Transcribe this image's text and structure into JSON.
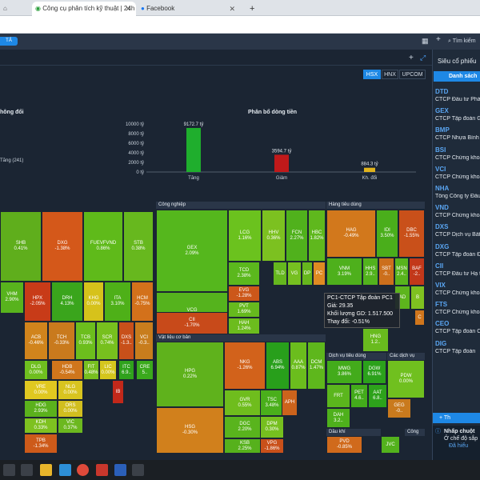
{
  "browser": {
    "tabs": [
      {
        "title": "Công cụ phân tích kỹ thuật | 24h"
      },
      {
        "title": "Facebook"
      }
    ]
  },
  "app": {
    "small_button": "TẢ",
    "search_placeholder": "Tìm kiếm"
  },
  "exchanges": [
    "HSX",
    "HNX",
    "UPCOM"
  ],
  "selected_exchange": "HSX",
  "chart_titles": {
    "left": "hông đổi",
    "right": "Phân bổ dòng tiền"
  },
  "left_legend": "Tăng (241)",
  "chart_data": {
    "type": "bar",
    "title": "Phân bổ dòng tiền",
    "categories": [
      "Tăng",
      "Giảm",
      "Kh. đổi"
    ],
    "values": [
      9172.7,
      3594.7,
      884.3
    ],
    "data_labels": [
      "9172.7 tỷ",
      "3594.7 tỷ",
      "884.3 tỷ"
    ],
    "y_ticks": [
      "10000 tỷ",
      "8000 tỷ",
      "6000 tỷ",
      "4000 tỷ",
      "2000 tỷ",
      "0 tỷ"
    ],
    "ylim": [
      0,
      10000
    ],
    "colors": [
      "#1fae2d",
      "#c0191a",
      "#e0b31c"
    ],
    "grid": false
  },
  "sectors": {
    "cong_nghiep": "Công nghiệp",
    "hang_tieu_dung": "Hàng tiêu dùng",
    "vat_lieu": "Vật liệu cơ bản",
    "dv_tieu_dung": "Dịch vụ tiêu dùng",
    "cac_dich_vu": "Các dịch vụ",
    "dau_khi": "Dầu khí",
    "cong": "Công"
  },
  "tiles": [
    {
      "sym": "SHB",
      "pct": "0.41%",
      "c": "#5fae1c"
    },
    {
      "sym": "DXG",
      "pct": "-1.38%",
      "c": "#d4581a"
    },
    {
      "sym": "FUEVFVND",
      "pct": "0.86%",
      "c": "#5fba1a"
    },
    {
      "sym": "STB",
      "pct": "0.38%",
      "c": "#67b81e"
    },
    {
      "sym": "HPX",
      "pct": "-2.05%",
      "c": "#c83b18"
    },
    {
      "sym": "DRH",
      "pct": "4.13%",
      "c": "#3aa51c"
    },
    {
      "sym": "KHG",
      "pct": "0.00%",
      "c": "#d6c21b"
    },
    {
      "sym": "ITA",
      "pct": "3.10%",
      "c": "#4eb018"
    },
    {
      "sym": "HCM",
      "pct": "-0.75%",
      "c": "#d3711b"
    },
    {
      "sym": "ACB",
      "pct": "-0.46%",
      "c": "#d1841c"
    },
    {
      "sym": "TCH",
      "pct": "-0.33%",
      "c": "#c97a1d"
    },
    {
      "sym": "TCB",
      "pct": "0.93%",
      "c": "#6cbe1d"
    },
    {
      "sym": "SCR",
      "pct": "0.74%",
      "c": "#77c01e"
    },
    {
      "sym": "DXS",
      "pct": "-1.3..",
      "c": "#c8501a"
    },
    {
      "sym": "VCI",
      "pct": "-0.3..",
      "c": "#c87d1d"
    },
    {
      "sym": "DLG",
      "pct": "0.00%",
      "c": "#6fbf1f"
    },
    {
      "sym": "HDB",
      "pct": "-0.54%",
      "c": "#d0761c"
    },
    {
      "sym": "FIT",
      "pct": "0.48%",
      "c": "#78bf20"
    },
    {
      "sym": "LIC",
      "pct": "0.00%",
      "c": "#d4c61d"
    },
    {
      "sym": "ITC",
      "pct": "6.9..",
      "c": "#2fa21c"
    },
    {
      "sym": "CRE",
      "pct": "5..",
      "c": "#3aaa1c"
    },
    {
      "sym": "VRE",
      "pct": "0.00%",
      "c": "#e0c820"
    },
    {
      "sym": "NLG",
      "pct": "0.00%",
      "c": "#d8c41f"
    },
    {
      "sym": "HDG",
      "pct": "2.93%",
      "c": "#5bb11c"
    },
    {
      "sym": "ORS",
      "pct": "0.00%",
      "c": "#d1be1f"
    },
    {
      "sym": "KDH",
      "pct": "0.33%",
      "c": "#7ec120"
    },
    {
      "sym": "VIC",
      "pct": "0.37%",
      "c": "#6cb81f"
    },
    {
      "sym": "TPB",
      "pct": "-1.34%",
      "c": "#cd5a1a"
    },
    {
      "sym": "VHM",
      "pct": "2.90%",
      "c": "#58b31d"
    },
    {
      "sym": "GEX",
      "pct": "2.09%",
      "c": "#55b71d"
    },
    {
      "sym": "LCG",
      "pct": "1.16%",
      "c": "#6bc21e"
    },
    {
      "sym": "HHV",
      "pct": "0.36%",
      "c": "#7cc120"
    },
    {
      "sym": "FCN",
      "pct": "2.27%",
      "c": "#50b11c"
    },
    {
      "sym": "HBC",
      "pct": "1.82%",
      "c": "#5fb81d"
    },
    {
      "sym": "VCG",
      "pct": "2.56%",
      "c": "#55b31d"
    },
    {
      "sym": "TCD",
      "pct": "2.38%",
      "c": "#5bb81d"
    },
    {
      "sym": "TLD",
      "pct": "",
      "c": "#65b71e"
    },
    {
      "sym": "VG",
      "pct": "",
      "c": "#76c020"
    },
    {
      "sym": "DP",
      "pct": "",
      "c": "#66b61d"
    },
    {
      "sym": "PC",
      "pct": "",
      "c": "#e08a22"
    },
    {
      "sym": "EVG",
      "pct": "-1.28%",
      "c": "#cc571a"
    },
    {
      "sym": "PVT",
      "pct": "1.69%",
      "c": "#66b91e"
    },
    {
      "sym": "CII",
      "pct": "-1.70%",
      "c": "#c84a1a"
    },
    {
      "sym": "HAH",
      "pct": "1.24%",
      "c": "#6cbc1e"
    },
    {
      "sym": "HAG",
      "pct": "-0.49%",
      "c": "#d2781c"
    },
    {
      "sym": "IDI",
      "pct": "3.50%",
      "c": "#4aae1b"
    },
    {
      "sym": "DBC",
      "pct": "-1.55%",
      "c": "#c9501a"
    },
    {
      "sym": "VNM",
      "pct": "3.19%",
      "c": "#4eb01c"
    },
    {
      "sym": "HHS",
      "pct": "2.9..",
      "c": "#52b21d"
    },
    {
      "sym": "SBT",
      "pct": "-0..",
      "c": "#cc6f1c"
    },
    {
      "sym": "MSN",
      "pct": "2.4..",
      "c": "#58b41d"
    },
    {
      "sym": "BAF",
      "pct": "-2..",
      "c": "#c2381a"
    },
    {
      "sym": "AD",
      "pct": "",
      "c": "#5db51d"
    },
    {
      "sym": "B",
      "pct": "",
      "c": "#7fc120"
    },
    {
      "sym": "HNG",
      "pct": "1.2..",
      "c": "#69bb1e"
    },
    {
      "sym": "C",
      "pct": "",
      "c": "#d0761c"
    },
    {
      "sym": "HPG",
      "pct": "0.22%",
      "c": "#5fb21c"
    },
    {
      "sym": "NKG",
      "pct": "-1.26%",
      "c": "#d2621b"
    },
    {
      "sym": "ABS",
      "pct": "6.94%",
      "c": "#289f1b"
    },
    {
      "sym": "AAA",
      "pct": "0.87%",
      "c": "#6bbd1d"
    },
    {
      "sym": "DCM",
      "pct": "1.47%",
      "c": "#5eb71c"
    },
    {
      "sym": "GVR",
      "pct": "0.55%",
      "c": "#6fbd1d"
    },
    {
      "sym": "TSC",
      "pct": "3.48%",
      "c": "#4aaf1b"
    },
    {
      "sym": "APH",
      "pct": "",
      "c": "#cc631c"
    },
    {
      "sym": "HSG",
      "pct": "-0.30%",
      "c": "#d1801c"
    },
    {
      "sym": "DGC",
      "pct": "2.20%",
      "c": "#59b41d"
    },
    {
      "sym": "DPM",
      "pct": "0.30%",
      "c": "#76bf1f"
    },
    {
      "sym": "KSB",
      "pct": "2.25%",
      "c": "#56b11c"
    },
    {
      "sym": "VPG",
      "pct": "-1.86%",
      "c": "#c9501a"
    },
    {
      "sym": "MWG",
      "pct": "3.86%",
      "c": "#43ab1b"
    },
    {
      "sym": "DGW",
      "pct": "6.91%",
      "c": "#2ba11b"
    },
    {
      "sym": "PDW",
      "pct": "0.00%",
      "c": "#70c01f"
    },
    {
      "sym": "FRT",
      "pct": "",
      "c": "#5bb61d"
    },
    {
      "sym": "PET",
      "pct": "4.6..",
      "c": "#43ab1b"
    },
    {
      "sym": "AAT",
      "pct": "6.8..",
      "c": "#2da21b"
    },
    {
      "sym": "DAH",
      "pct": "3.2..",
      "c": "#4eb01c"
    },
    {
      "sym": "GEG",
      "pct": "-0..",
      "c": "#c97a1d"
    },
    {
      "sym": "PVD",
      "pct": "-0.85%",
      "c": "#d06a1c"
    },
    {
      "sym": "JVC",
      "pct": "",
      "c": "#53b21d"
    },
    {
      "sym": "IB",
      "pct": "",
      "c": "#c2281a"
    }
  ],
  "tooltip": {
    "title": "PC1-CTCP Tập đoàn PC1",
    "price_label": "Giá:",
    "price": "29.35",
    "volume_label": "Khối lượng GD:",
    "volume": "1.517.500",
    "change_label": "Thay đổi:",
    "change": "-0.51%"
  },
  "sidebar": {
    "title": "Siêu cổ phiếu",
    "list_button": "Danh sách",
    "stocks": [
      {
        "sym": "DTD",
        "name": "CTCP Đầu tư Phá"
      },
      {
        "sym": "GEX",
        "name": "CTCP Tập đoàn G"
      },
      {
        "sym": "BMP",
        "name": "CTCP Nhựa Bình"
      },
      {
        "sym": "BSI",
        "name": "CTCP Chứng khoa"
      },
      {
        "sym": "VCI",
        "name": "CTCP Chứng khoa"
      },
      {
        "sym": "NHA",
        "name": "Tổng Công ty Đầu"
      },
      {
        "sym": "VND",
        "name": "CTCP Chứng khoa"
      },
      {
        "sym": "DXS",
        "name": "CTCP Dịch vụ Bất"
      },
      {
        "sym": "DXG",
        "name": "CTCP Tập đoàn Đ"
      },
      {
        "sym": "CII",
        "name": "CTCP Đầu tư Hạ t"
      },
      {
        "sym": "VIX",
        "name": "CTCP Chứng khoa"
      },
      {
        "sym": "FTS",
        "name": "CTCP Chứng khoa"
      },
      {
        "sym": "CEO",
        "name": "CTCP Tập đoàn C"
      },
      {
        "sym": "DIG",
        "name": "CTCP Tập đoàn"
      }
    ],
    "follow_button": "+ Th",
    "notice_title": "Nhấp chuột",
    "notice_text": "Ở chế độ sắp",
    "notice_link": "Đã hiểu"
  }
}
